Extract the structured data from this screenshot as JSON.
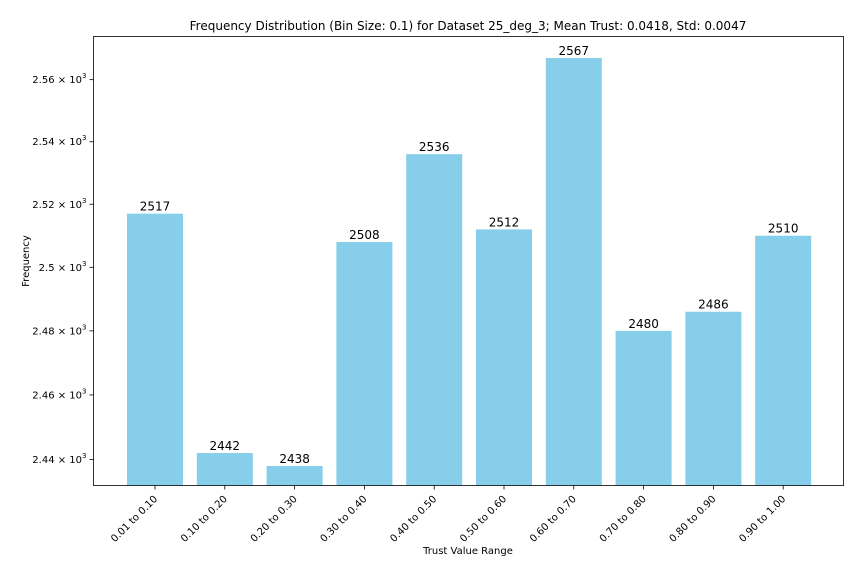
{
  "chart_data": {
    "type": "bar",
    "title": "Frequency Distribution (Bin Size: 0.1) for Dataset 25_deg_3; Mean Trust: 0.0418, Std: 0.0047",
    "xlabel": "Trust Value Range",
    "ylabel": "Frequency",
    "yscale": "log",
    "ylim": [
      2432,
      2574
    ],
    "grid": false,
    "bar_color": "#87ceeb",
    "categories": [
      "0.01 to 0.10",
      "0.10 to 0.20",
      "0.20 to 0.30",
      "0.30 to 0.40",
      "0.40 to 0.50",
      "0.50 to 0.60",
      "0.60 to 0.70",
      "0.70 to 0.80",
      "0.80 to 0.90",
      "0.90 to 1.00"
    ],
    "values": [
      2517,
      2442,
      2438,
      2508,
      2536,
      2512,
      2567,
      2480,
      2486,
      2510
    ],
    "data_labels": [
      "2517",
      "2442",
      "2438",
      "2508",
      "2536",
      "2512",
      "2567",
      "2480",
      "2486",
      "2510"
    ],
    "y_ticks": [
      {
        "value": 2440,
        "mantissa": "2.44"
      },
      {
        "value": 2460,
        "mantissa": "2.46"
      },
      {
        "value": 2480,
        "mantissa": "2.48"
      },
      {
        "value": 2500,
        "mantissa": "2.5"
      },
      {
        "value": 2520,
        "mantissa": "2.52"
      },
      {
        "value": 2540,
        "mantissa": "2.54"
      },
      {
        "value": 2560,
        "mantissa": "2.56"
      }
    ],
    "y_tick_base": "10",
    "y_tick_exponent": "3"
  }
}
